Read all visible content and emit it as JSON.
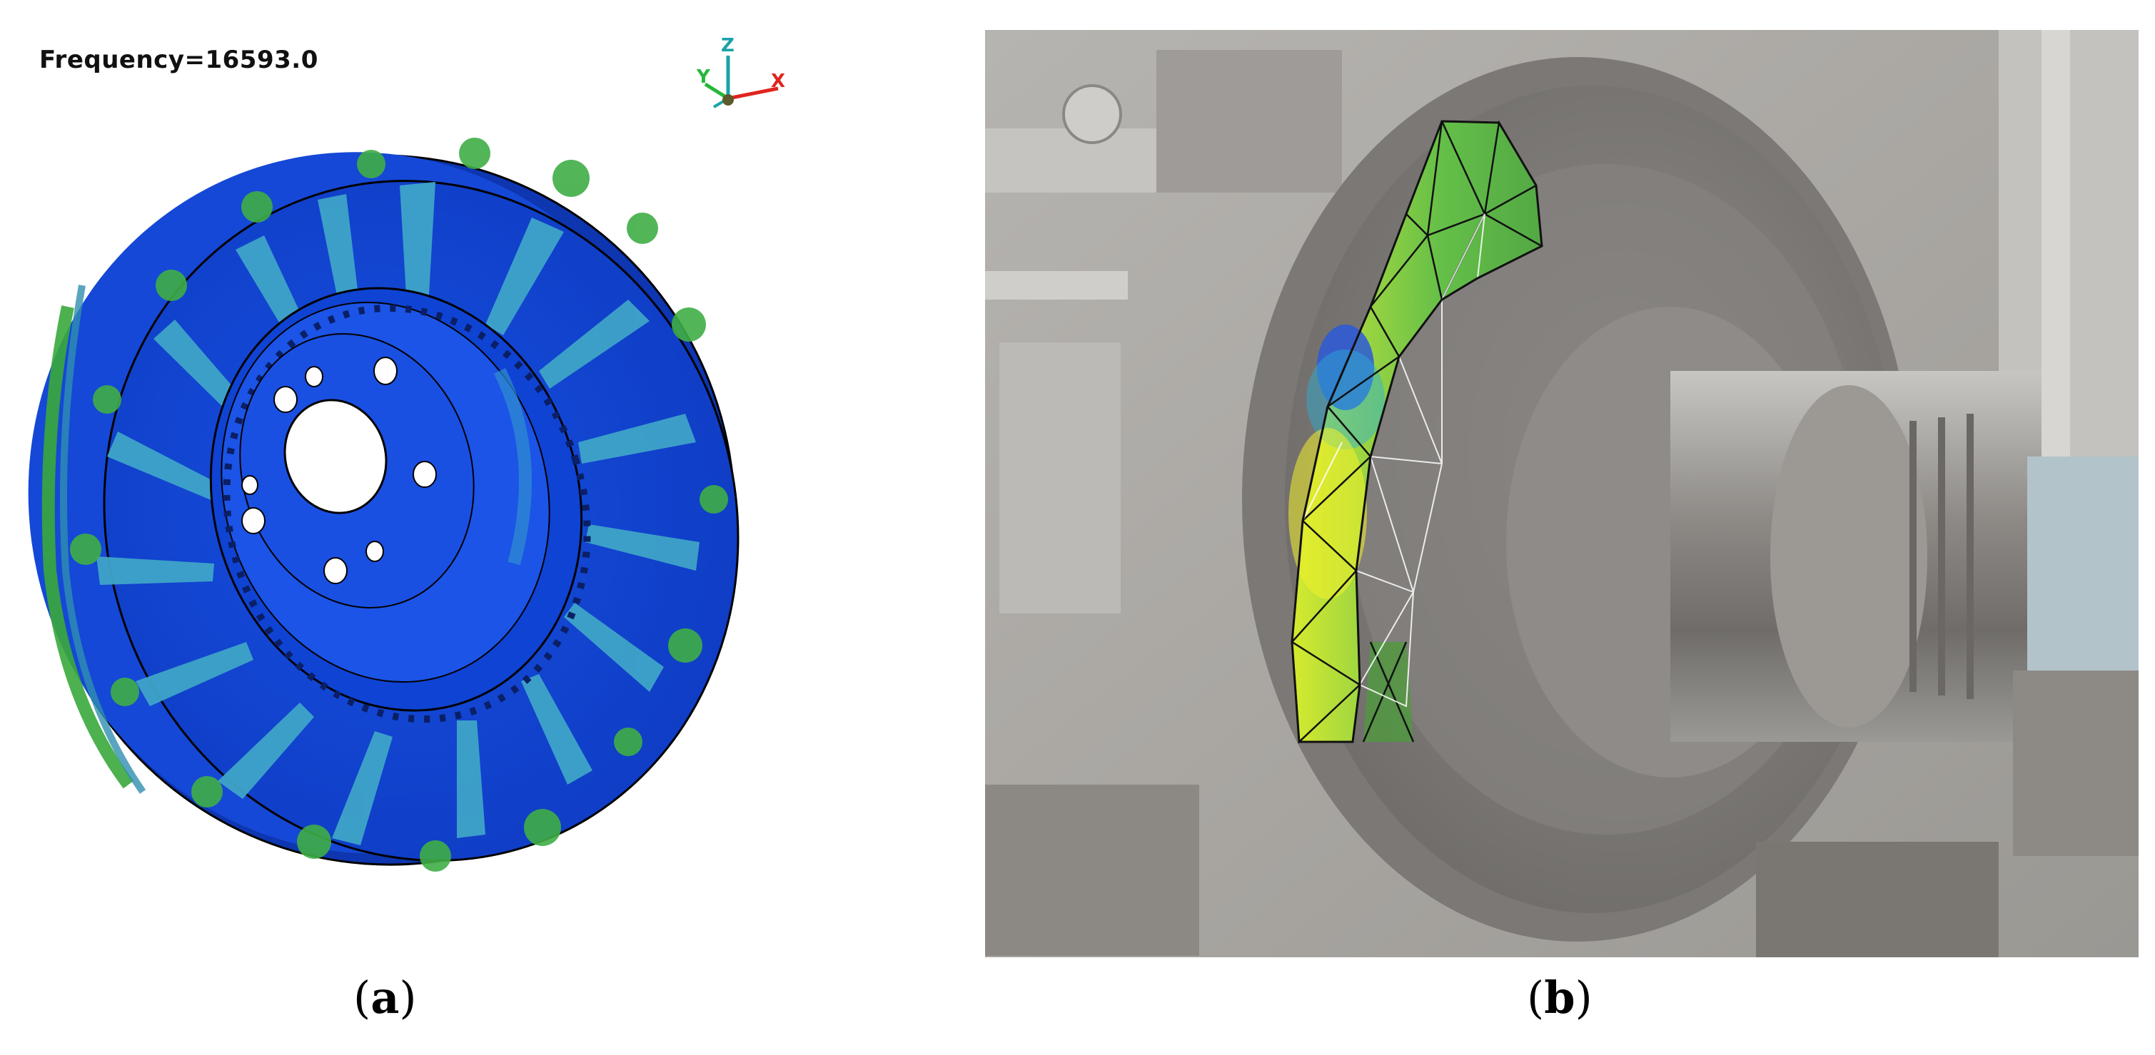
{
  "figure": {
    "panel_a": {
      "frequency_label": "Frequency=16593.0",
      "axis_triad": {
        "z_label": "Z",
        "y_label": "Y",
        "x_label": "X"
      },
      "caption_letter": "a"
    },
    "panel_b": {
      "caption_letter": "b"
    }
  },
  "colors": {
    "disc_blue": "#1446d8",
    "disc_light_blue": "#3fa4c8",
    "disc_green": "#3ea93a",
    "axis_x_red": "#e0241e",
    "axis_y_green": "#25b83a",
    "axis_z_teal": "#1aa3a8",
    "mesh_yellow": "#e4ee2a",
    "mesh_green": "#5abb3d"
  }
}
